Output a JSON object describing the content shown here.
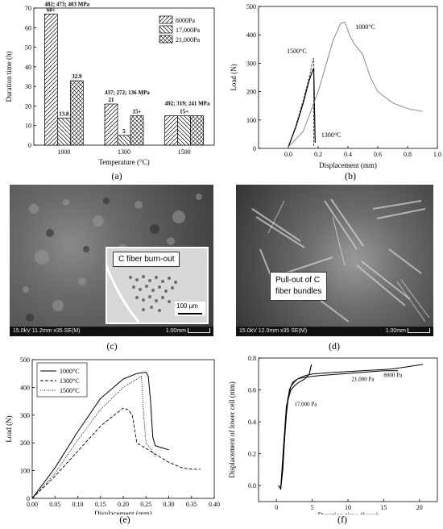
{
  "captions": {
    "a": "(a)",
    "b": "(b)",
    "c": "(c)",
    "d": "(d)",
    "e": "(e)",
    "f": "(f)"
  },
  "sem_c": {
    "inset_label": "C fiber burn-out",
    "scale_label": "100 μm",
    "info_left": "15.0kV 11.2mm x35 SE(M)",
    "info_right": "1.00mm"
  },
  "sem_d": {
    "label_line1": "Pull-out of C",
    "label_line2": "fiber bundles",
    "info_left": "15.0kV 12.0mm x35 SE(M)",
    "info_right": "1.00mm"
  },
  "chart_data": [
    {
      "type": "bar",
      "panel": "a",
      "xlabel": "Temperature (°C)",
      "ylabel": "Duration time (h)",
      "categories": [
        "1000",
        "1300",
        "1500"
      ],
      "ylim": [
        0,
        70
      ],
      "yticks": [
        0,
        10,
        20,
        30,
        40,
        50,
        60,
        70
      ],
      "series": [
        {
          "name": "8000Pa",
          "values": [
            67,
            21,
            15
          ]
        },
        {
          "name": "17,000Pa",
          "values": [
            13.8,
            5,
            15
          ]
        },
        {
          "name": "21,000Pa",
          "values": [
            32.9,
            15,
            15
          ]
        }
      ],
      "bar_labels": [
        [
          "60+",
          "13.8",
          "32.9"
        ],
        [
          "21",
          "5",
          "15+"
        ],
        [
          "",
          "15+",
          ""
        ]
      ],
      "annotations": [
        "482; 473; 403 MPa",
        "437; 272; 136 MPa",
        "492; 319; 241 MPa"
      ],
      "legend": "top-right"
    },
    {
      "type": "line",
      "panel": "b",
      "xlabel": "Displacement (mm)",
      "ylabel": "Load (N)",
      "xlim": [
        -0.2,
        1.0
      ],
      "ylim": [
        0,
        500
      ],
      "xticks": [
        "0.0",
        "0.2",
        "0.4",
        "0.6",
        "0.8",
        "1.0"
      ],
      "yticks": [
        "0",
        "100",
        "200",
        "300",
        "400",
        "500"
      ],
      "series": [
        {
          "name": "1500°C",
          "x": [
            0,
            0.05,
            0.1,
            0.14,
            0.16,
            0.17,
            0.17
          ],
          "y": [
            5,
            80,
            170,
            250,
            300,
            318,
            5
          ]
        },
        {
          "name": "1300°C",
          "x": [
            0,
            0.05,
            0.1,
            0.14,
            0.16,
            0.17,
            0.18
          ],
          "y": [
            5,
            75,
            160,
            240,
            270,
            282,
            20
          ]
        },
        {
          "name": "1000°C",
          "x": [
            0,
            0.1,
            0.2,
            0.3,
            0.35,
            0.38,
            0.41,
            0.44,
            0.5,
            0.55,
            0.6,
            0.7,
            0.8,
            0.9
          ],
          "y": [
            5,
            60,
            200,
            380,
            440,
            445,
            400,
            370,
            330,
            250,
            200,
            160,
            140,
            130
          ]
        }
      ]
    },
    {
      "type": "line",
      "panel": "e",
      "xlabel": "Displacement (mm)",
      "ylabel": "Load (N)",
      "xlim": [
        0,
        0.4
      ],
      "ylim": [
        0,
        500
      ],
      "xticks": [
        "0.00",
        "0.05",
        "0.10",
        "0.15",
        "0.20",
        "0.25",
        "0.30",
        "0.35",
        "0.40"
      ],
      "yticks": [
        "0",
        "100",
        "200",
        "300",
        "400",
        "500"
      ],
      "legend": "top-left",
      "series": [
        {
          "name": "1000°C",
          "x": [
            0,
            0.05,
            0.1,
            0.15,
            0.2,
            0.23,
            0.25,
            0.255,
            0.26,
            0.265,
            0.27,
            0.28,
            0.29,
            0.3
          ],
          "y": [
            0,
            110,
            240,
            360,
            430,
            450,
            455,
            440,
            350,
            220,
            190,
            185,
            180,
            175
          ]
        },
        {
          "name": "1300°C",
          "x": [
            0,
            0.05,
            0.1,
            0.15,
            0.18,
            0.2,
            0.21,
            0.22,
            0.23,
            0.25,
            0.28,
            0.3,
            0.33,
            0.35,
            0.37
          ],
          "y": [
            0,
            80,
            170,
            260,
            300,
            325,
            320,
            300,
            200,
            180,
            150,
            130,
            110,
            105,
            105
          ]
        },
        {
          "name": "1500°C",
          "x": [
            0,
            0.05,
            0.1,
            0.15,
            0.2,
            0.22,
            0.24,
            0.245,
            0.25,
            0.26,
            0.27
          ],
          "y": [
            0,
            90,
            210,
            320,
            400,
            420,
            440,
            300,
            200,
            180,
            150
          ]
        }
      ]
    },
    {
      "type": "line",
      "panel": "f",
      "xlabel": "Duration time (hour)",
      "ylabel": "Displacement of lower cell (mm)",
      "xlim": [
        -2.5,
        22.5
      ],
      "ylim": [
        -0.1,
        0.8
      ],
      "xticks": [
        "0",
        "5",
        "10",
        "15",
        "20"
      ],
      "yticks": [
        "0.0",
        "0.2",
        "0.4",
        "0.6",
        "0.8"
      ],
      "series": [
        {
          "name": "8000 Pa",
          "x": [
            0.3,
            0.6,
            0.9,
            1.2,
            1.6,
            2,
            2.5,
            3,
            4,
            5,
            8,
            12,
            16,
            19,
            20.5
          ],
          "y": [
            0,
            -0.02,
            0.1,
            0.35,
            0.55,
            0.62,
            0.65,
            0.67,
            0.69,
            0.7,
            0.71,
            0.72,
            0.73,
            0.75,
            0.76
          ]
        },
        {
          "name": "21,000 Pa",
          "x": [
            0.3,
            0.6,
            1,
            1.4,
            1.8,
            2.3,
            3,
            4,
            6,
            9,
            12,
            15,
            17
          ],
          "y": [
            0,
            -0.02,
            0.2,
            0.45,
            0.6,
            0.65,
            0.67,
            0.68,
            0.69,
            0.7,
            0.71,
            0.72,
            0.72
          ]
        },
        {
          "name": "17,000 Pa",
          "x": [
            0.3,
            0.6,
            1,
            1.4,
            2,
            2.6,
            3.2,
            4,
            4.6,
            4.9
          ],
          "y": [
            0,
            -0.02,
            0.25,
            0.5,
            0.6,
            0.63,
            0.65,
            0.67,
            0.7,
            0.76
          ]
        }
      ]
    }
  ]
}
